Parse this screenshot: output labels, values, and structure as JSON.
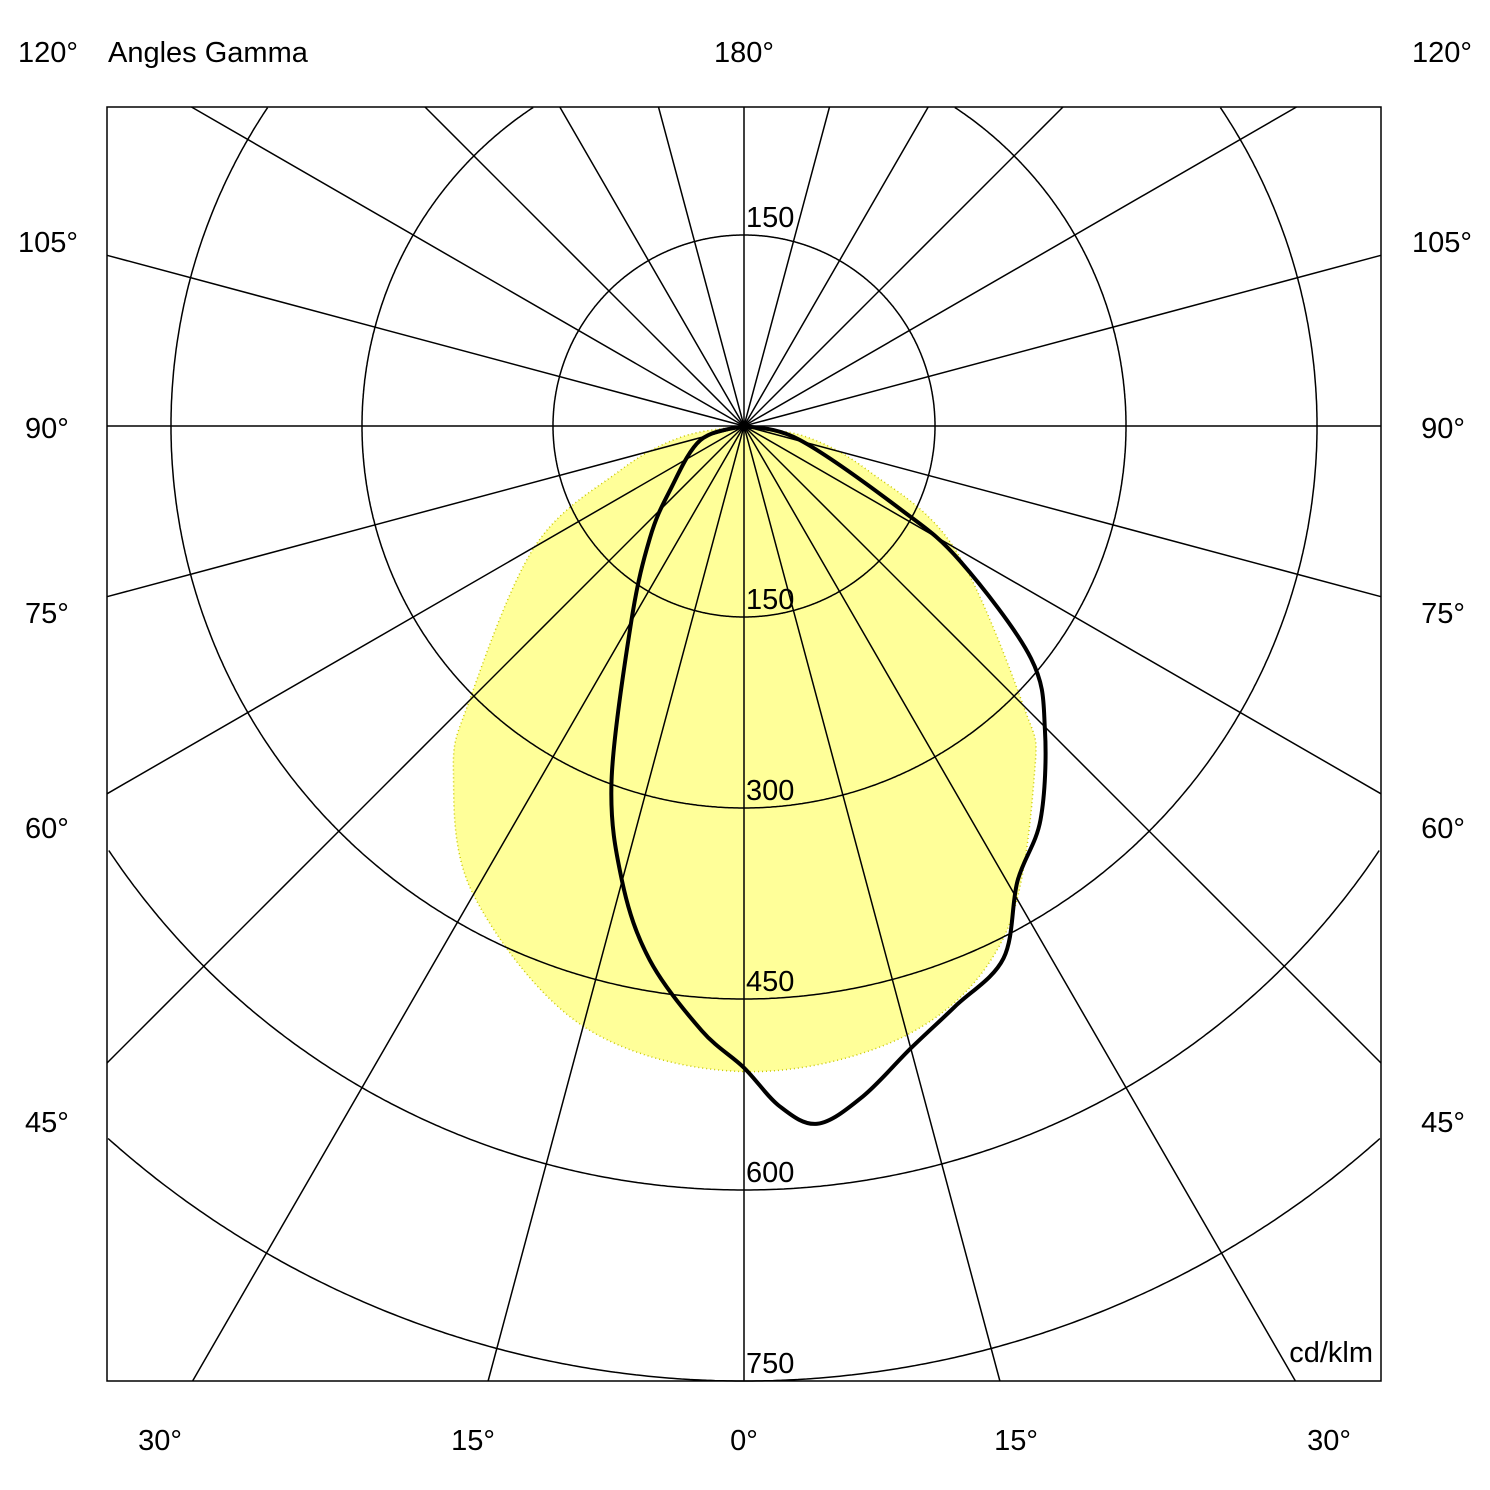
{
  "chart_data": {
    "type": "polar",
    "title": "Angles Gamma",
    "unit_label": "cd/klm",
    "radial_range": [
      0,
      750
    ],
    "radial_ticks": [
      150,
      300,
      450,
      600,
      750
    ],
    "radial_tick_labels": [
      "150",
      "300",
      "450",
      "600",
      "750"
    ],
    "top_center_label": "180°",
    "corner_labels": {
      "top_left": "120°",
      "top_right": "120°"
    },
    "side_labels": [
      "105°",
      "90°",
      "75°",
      "60°",
      "45°"
    ],
    "bottom_labels": [
      "30°",
      "15°",
      "0°",
      "15°",
      "30°"
    ],
    "angular_grid_step_deg": 15,
    "grid": true,
    "colors": {
      "fill": "#ffff99",
      "curve": "#000000",
      "grid": "#000000"
    },
    "series": [
      {
        "style": "filled",
        "points": [
          [
            -90,
            0
          ],
          [
            -80,
            50
          ],
          [
            -70,
            105
          ],
          [
            -60,
            190
          ],
          [
            -45,
            305
          ],
          [
            -40,
            355
          ],
          [
            -30,
            425
          ],
          [
            -15,
            488
          ],
          [
            0,
            507
          ],
          [
            15,
            495
          ],
          [
            27,
            450
          ],
          [
            40,
            355
          ],
          [
            45,
            310
          ],
          [
            60,
            190
          ],
          [
            70,
            105
          ],
          [
            80,
            50
          ],
          [
            90,
            0
          ]
        ]
      },
      {
        "style": "line",
        "points": [
          [
            -90,
            0
          ],
          [
            -72,
            36
          ],
          [
            -49,
            77
          ],
          [
            -40,
            115
          ],
          [
            -30,
            177
          ],
          [
            -20.5,
            297
          ],
          [
            -15,
            370
          ],
          [
            -10,
            426
          ],
          [
            -4,
            476
          ],
          [
            0,
            504
          ],
          [
            3,
            535
          ],
          [
            6,
            551
          ],
          [
            10,
            535
          ],
          [
            15,
            506
          ],
          [
            20,
            485
          ],
          [
            26,
            465
          ],
          [
            31,
            417
          ],
          [
            37,
            387
          ],
          [
            44.7,
            336
          ],
          [
            51,
            290
          ],
          [
            58,
            200
          ],
          [
            62,
            139
          ],
          [
            76,
            45
          ],
          [
            90,
            0
          ]
        ]
      }
    ]
  }
}
